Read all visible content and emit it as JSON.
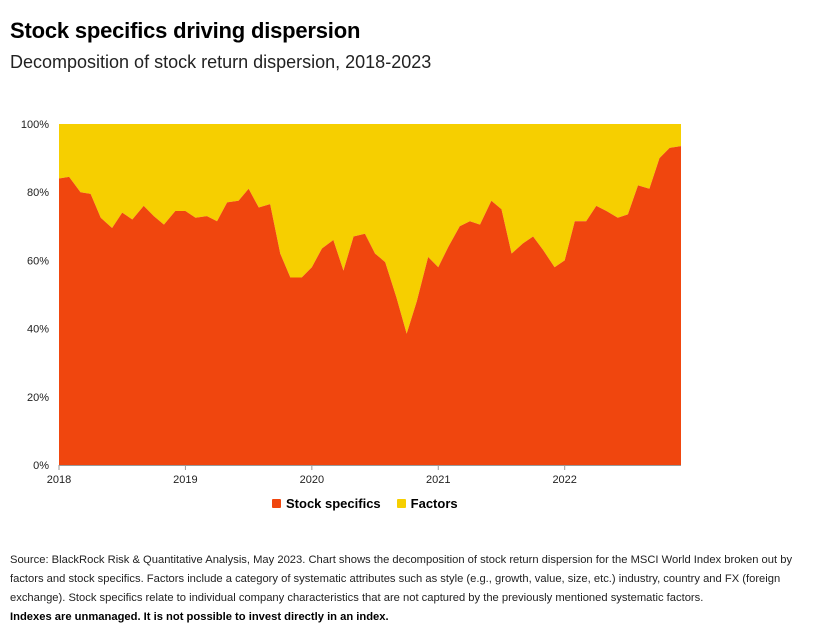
{
  "header": {
    "title": "Stock specifics driving dispersion",
    "subtitle": "Decomposition of stock return dispersion, 2018-2023"
  },
  "footer": {
    "source": "Source: BlackRock Risk & Quantitative Analysis, May 2023. Chart shows the decomposition of stock return dispersion for the MSCI World Index broken out by factors and stock specifics. Factors include a category of systematic attributes such as style (e.g., growth, value, size, etc.) industry, country and FX (foreign exchange). Stock specifics relate to individual company characteristics that are not captured by the previously mentioned systematic factors.",
    "disclaimer": "Indexes are unmanaged. It is not possible to invest directly in an index."
  },
  "colors": {
    "stock_specifics": "#f0460e",
    "factors": "#f6cf00"
  },
  "chart_data": {
    "type": "area",
    "stacked": true,
    "title": "Stock specifics driving dispersion",
    "subtitle": "Decomposition of stock return dispersion, 2018-2023",
    "xlabel": "",
    "ylabel": "",
    "xlim": [
      2018.0,
      2022.92
    ],
    "ylim": [
      0,
      100
    ],
    "y_ticks": [
      "0%",
      "20%",
      "40%",
      "60%",
      "80%",
      "100%"
    ],
    "x_ticks": [
      "2018",
      "2019",
      "2020",
      "2021",
      "2022"
    ],
    "grid": false,
    "legend_position": "bottom",
    "x": [
      2018.0,
      2018.08,
      2018.17,
      2018.25,
      2018.33,
      2018.42,
      2018.5,
      2018.58,
      2018.67,
      2018.75,
      2018.83,
      2018.92,
      2019.0,
      2019.08,
      2019.17,
      2019.25,
      2019.33,
      2019.42,
      2019.5,
      2019.58,
      2019.67,
      2019.75,
      2019.83,
      2019.92,
      2020.0,
      2020.08,
      2020.17,
      2020.25,
      2020.33,
      2020.42,
      2020.5,
      2020.58,
      2020.67,
      2020.75,
      2020.83,
      2020.92,
      2021.0,
      2021.08,
      2021.17,
      2021.25,
      2021.33,
      2021.42,
      2021.5,
      2021.58,
      2021.67,
      2021.75,
      2021.83,
      2021.92,
      2022.0,
      2022.08,
      2022.17,
      2022.25,
      2022.33,
      2022.42,
      2022.5,
      2022.58,
      2022.67,
      2022.75,
      2022.83,
      2022.92
    ],
    "series": [
      {
        "name": "Stock specifics",
        "values": [
          84,
          84.5,
          80,
          79.5,
          72.5,
          69.5,
          74,
          72,
          76,
          73,
          70.5,
          74.5,
          74.5,
          72.5,
          73,
          71.5,
          77,
          77.5,
          81,
          75.5,
          76.5,
          62,
          55,
          55,
          58,
          63.5,
          66,
          57,
          67,
          67.8,
          62,
          59.5,
          49,
          38.5,
          48,
          61,
          58,
          64,
          70,
          71.5,
          70.5,
          77.5,
          75,
          62,
          65,
          67,
          63,
          58,
          60,
          71.5,
          71.5,
          76,
          74.5,
          72.5,
          73.5,
          82,
          81,
          90,
          93,
          93.5
        ]
      },
      {
        "name": "Factors",
        "values": [
          16,
          15.5,
          20,
          20.5,
          27.5,
          30.5,
          26,
          28,
          24,
          27,
          29.5,
          25.5,
          25.5,
          27.5,
          27,
          28.5,
          23,
          22.5,
          19,
          24.5,
          23.5,
          38,
          45,
          45,
          42,
          36.5,
          34,
          43,
          33,
          32.2,
          38,
          40.5,
          51,
          61.5,
          52,
          39,
          42,
          36,
          30,
          28.5,
          29.5,
          22.5,
          25,
          38,
          35,
          33,
          37,
          42,
          40,
          28.5,
          28.5,
          24,
          25.5,
          27.5,
          26.5,
          18,
          19,
          10,
          7,
          6.5
        ]
      }
    ]
  }
}
